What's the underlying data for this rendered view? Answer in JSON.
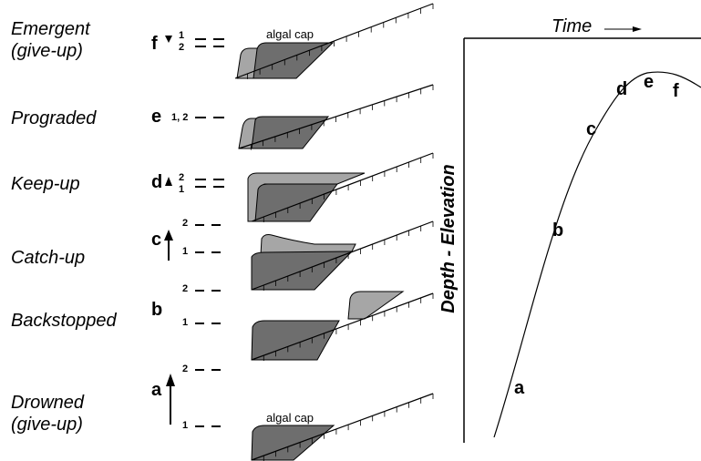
{
  "scenarios": {
    "emergent": {
      "line1": "Emergent",
      "line2": "(give-up)",
      "letter": "f",
      "mark1": "1",
      "mark2": "2",
      "cap": "algal cap"
    },
    "prograded": {
      "line1": "Prograded",
      "letter": "e",
      "marks": "1, 2"
    },
    "keepup": {
      "line1": "Keep-up",
      "letter": "d",
      "mark1": "2",
      "mark2": "1"
    },
    "catchup": {
      "line1": "Catch-up",
      "letter": "c",
      "mark1": "2",
      "mark2": "1"
    },
    "backstopped": {
      "line1": "Backstopped",
      "letter": "b",
      "mark1": "2",
      "mark2": "1"
    },
    "drowned": {
      "line1": "Drowned",
      "line2": "(give-up)",
      "letter": "a",
      "mark1": "2",
      "mark2": "1",
      "cap": "algal cap"
    }
  },
  "plot": {
    "x_label": "Time",
    "y_label": "Depth - Elevation",
    "points": [
      {
        "label": "a"
      },
      {
        "label": "b"
      },
      {
        "label": "c"
      },
      {
        "label": "d"
      },
      {
        "label": "e"
      },
      {
        "label": "f"
      }
    ]
  },
  "colors": {
    "light": "#a6a6a6",
    "dark": "#6e6e6e",
    "line": "#000000"
  }
}
